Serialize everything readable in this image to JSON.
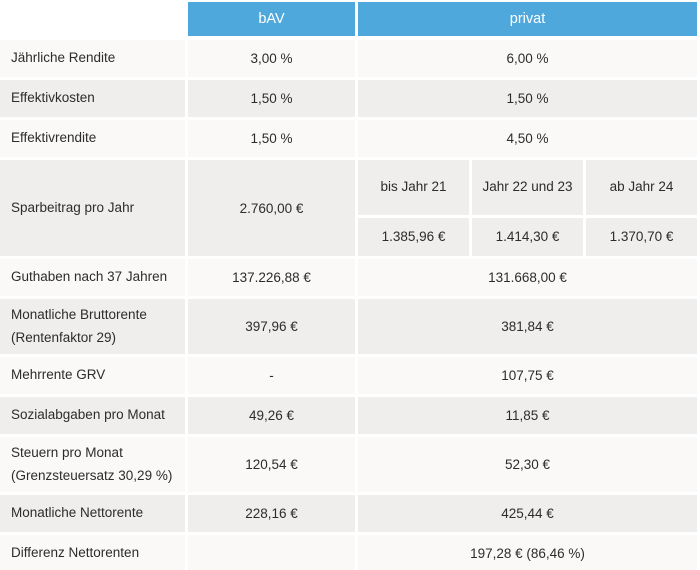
{
  "chart_data": {
    "type": "table",
    "columns": [
      "",
      "bAV",
      "privat"
    ],
    "rows": [
      {
        "label": "Jährliche Rendite",
        "bav": "3,00 %",
        "privat": "6,00 %"
      },
      {
        "label": "Effektivkosten",
        "bav": "1,50 %",
        "privat": "1,50 %"
      },
      {
        "label": "Effektivrendite",
        "bav": "1,50 %",
        "privat": "4,50 %"
      },
      {
        "label": "Sparbeitrag pro Jahr",
        "bav": "2.760,00 €",
        "sub": {
          "columns": [
            "bis Jahr 21",
            "Jahr 22 und 23",
            "ab Jahr 24"
          ],
          "values": [
            "1.385,96 €",
            "1.414,30 €",
            "1.370,70 €"
          ]
        }
      },
      {
        "label": "Guthaben nach 37 Jahren",
        "bav": "137.226,88 €",
        "privat": "131.668,00 €"
      },
      {
        "label": "Monatliche Bruttorente (Rentenfaktor 29)",
        "bav": "397,96 €",
        "privat": "381,84 €"
      },
      {
        "label": "Mehrrente GRV",
        "bav": "-",
        "privat": "107,75 €"
      },
      {
        "label": "Sozialabgaben pro Monat",
        "bav": "49,26 €",
        "privat": "11,85 €"
      },
      {
        "label": "Steuern pro Monat (Grenzsteuersatz 30,29 %)",
        "bav": "120,54 €",
        "privat": "52,30 €"
      },
      {
        "label": "Monatliche Nettorente",
        "bav": "228,16 €",
        "privat": "425,44 €"
      },
      {
        "label": "Differenz Nettorenten",
        "bav": "",
        "privat": "197,28 € (86,46 %)"
      }
    ]
  },
  "header": {
    "bav": "bAV",
    "privat": "privat"
  },
  "colors": {
    "header_bg": "#4fa8dc",
    "header_text": "#ffffff",
    "row_light": "#faf9f7",
    "row_gray": "#f0eeec",
    "body_text": "#2c2c2c",
    "gutter": "#ffffff"
  }
}
